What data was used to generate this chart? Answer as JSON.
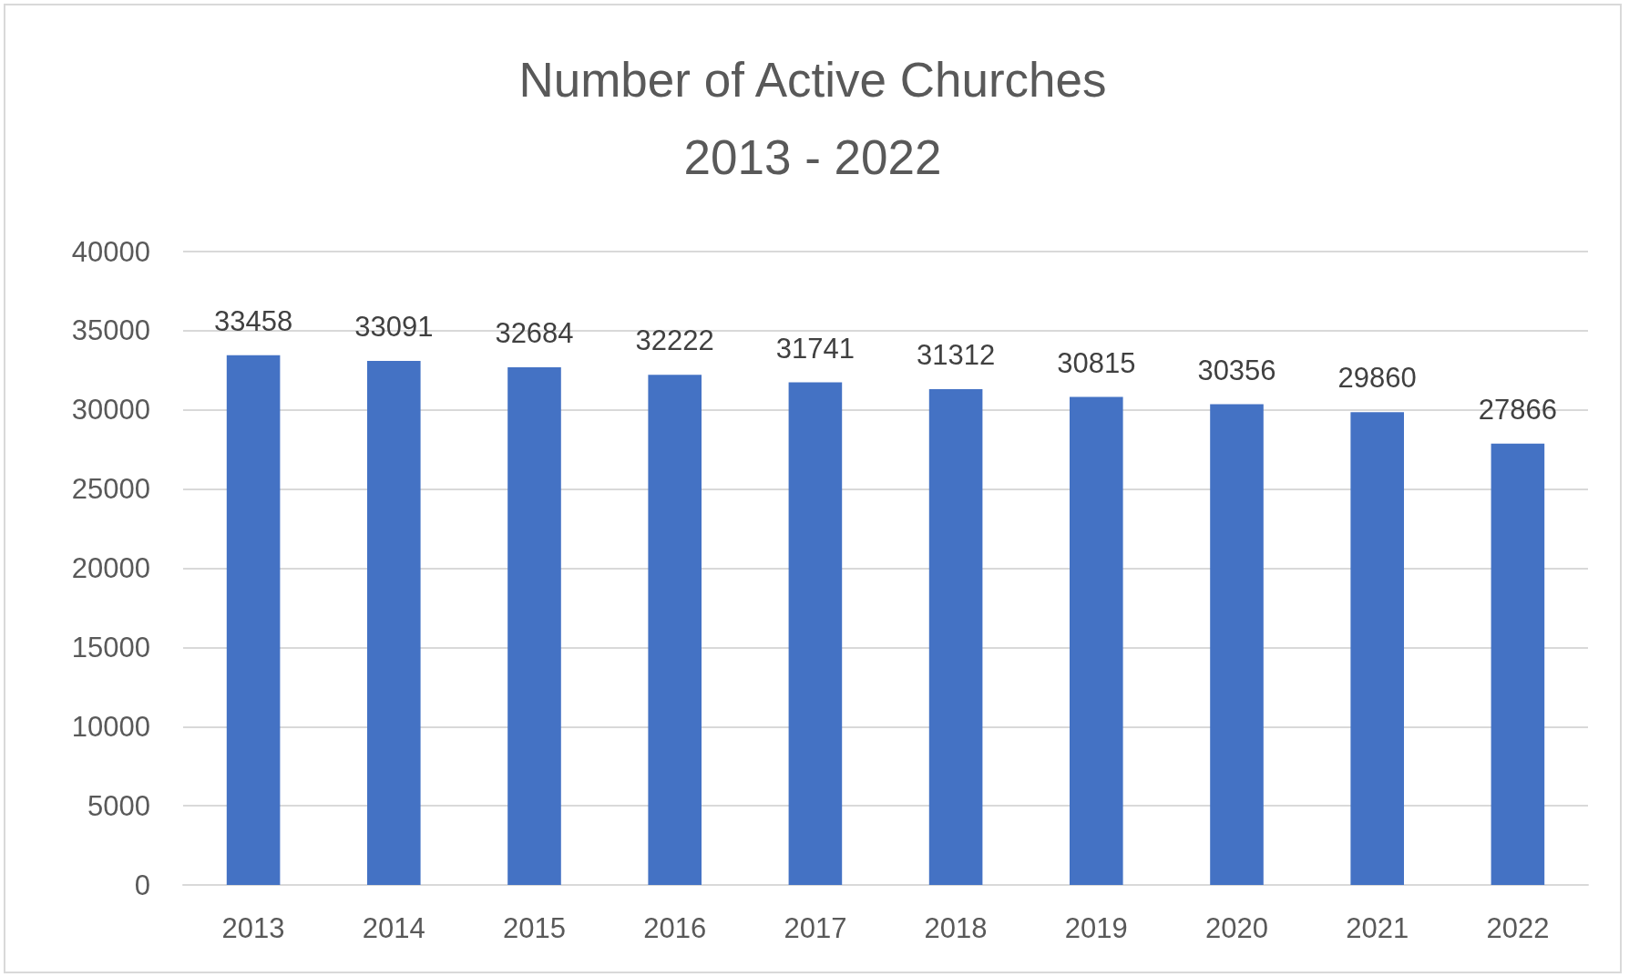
{
  "chart_data": {
    "type": "bar",
    "title": "Number of Active Churches",
    "subtitle": "2013 - 2022",
    "categories": [
      "2013",
      "2014",
      "2015",
      "2016",
      "2017",
      "2018",
      "2019",
      "2020",
      "2021",
      "2022"
    ],
    "values": [
      33458,
      33091,
      32684,
      32222,
      31741,
      31312,
      30815,
      30356,
      29860,
      27866
    ],
    "color": "#4472c4",
    "ylim": [
      0,
      40000
    ],
    "yticks": [
      0,
      5000,
      10000,
      15000,
      20000,
      25000,
      30000,
      35000,
      40000
    ],
    "grid": "y",
    "data_labels": true
  }
}
